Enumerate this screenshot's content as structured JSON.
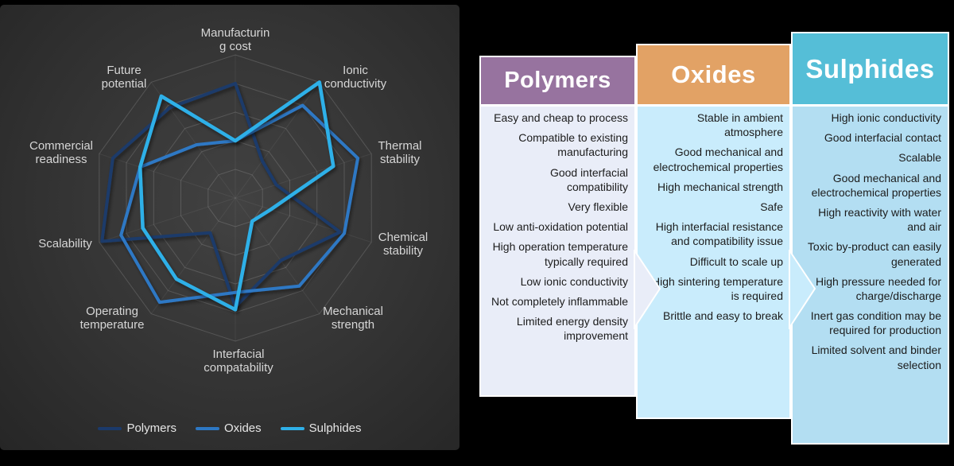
{
  "chart_data": {
    "type": "radar",
    "categories": [
      "Manufacturing cost",
      "Ionic conductivity",
      "Thermal stability",
      "Chemical stability",
      "Mechanical strength",
      "Interfacial compatability",
      "Operating temperature",
      "Scalability",
      "Commercial readiness",
      "Future potential"
    ],
    "axis_label_lines": [
      [
        "Manufacturin",
        "g cost"
      ],
      [
        "Ionic",
        "conductivity"
      ],
      [
        "Thermal",
        "stability"
      ],
      [
        "Chemical",
        "stability"
      ],
      [
        "Mechanical",
        "strength"
      ],
      [
        "Interfacial",
        "compatability"
      ],
      [
        "Operating",
        "temperature"
      ],
      [
        "Scalability"
      ],
      [
        "Commercial",
        "readiness"
      ],
      [
        "Future",
        "potential"
      ]
    ],
    "series": [
      {
        "name": "Polymers",
        "color": "#1b3a6b",
        "values": [
          4.0,
          1.6,
          1.5,
          3.85,
          2.7,
          3.8,
          1.5,
          4.9,
          4.5,
          3.9
        ]
      },
      {
        "name": "Oxides",
        "color": "#2d78c4",
        "values": [
          2.0,
          4.0,
          4.5,
          4.0,
          3.8,
          3.3,
          4.5,
          4.2,
          3.5,
          2.3
        ]
      },
      {
        "name": "Sulphides",
        "color": "#2fb0e8",
        "values": [
          2.0,
          5.0,
          3.6,
          1.3,
          1.0,
          3.9,
          3.5,
          3.4,
          3.5,
          4.4
        ]
      }
    ],
    "rmin": 0,
    "rmax": 5,
    "rings": 5,
    "grid": "on",
    "legend_position": "bottom",
    "title": ""
  },
  "legend": {
    "items": [
      "Polymers",
      "Oxides",
      "Sulphides"
    ]
  },
  "panels": [
    {
      "title": "Polymers",
      "header_color": "#97739f",
      "body_color": "#e9edf8",
      "items": [
        "Easy and cheap to process",
        "Compatible to existing manufacturing",
        "Good interfacial compatibility",
        "Very flexible",
        "Low anti-oxidation potential",
        "High operation temperature typically required",
        "Low ionic conductivity",
        "Not completely inflammable",
        "Limited energy density improvement"
      ]
    },
    {
      "title": "Oxides",
      "header_color": "#e2a265",
      "body_color": "#c9ecfc",
      "items": [
        "Stable in ambient atmosphere",
        "Good mechanical and electrochemical properties",
        "High mechanical strength",
        "Safe",
        "High interfacial resistance and compatibility issue",
        "Difficult to scale up",
        "High sintering temperature is required",
        "Brittle and easy to break"
      ]
    },
    {
      "title": "Sulphides",
      "header_color": "#55bed7",
      "body_color": "#b3def2",
      "items": [
        "High ionic conductivity",
        "Good interfacial contact",
        "Scalable",
        "Good mechanical and electrochemical properties",
        "High reactivity with water and air",
        "Toxic by-product can easily generated",
        "High pressure needed for charge/discharge",
        "Inert gas condition may be required for production",
        "Limited solvent and binder selection"
      ]
    }
  ]
}
